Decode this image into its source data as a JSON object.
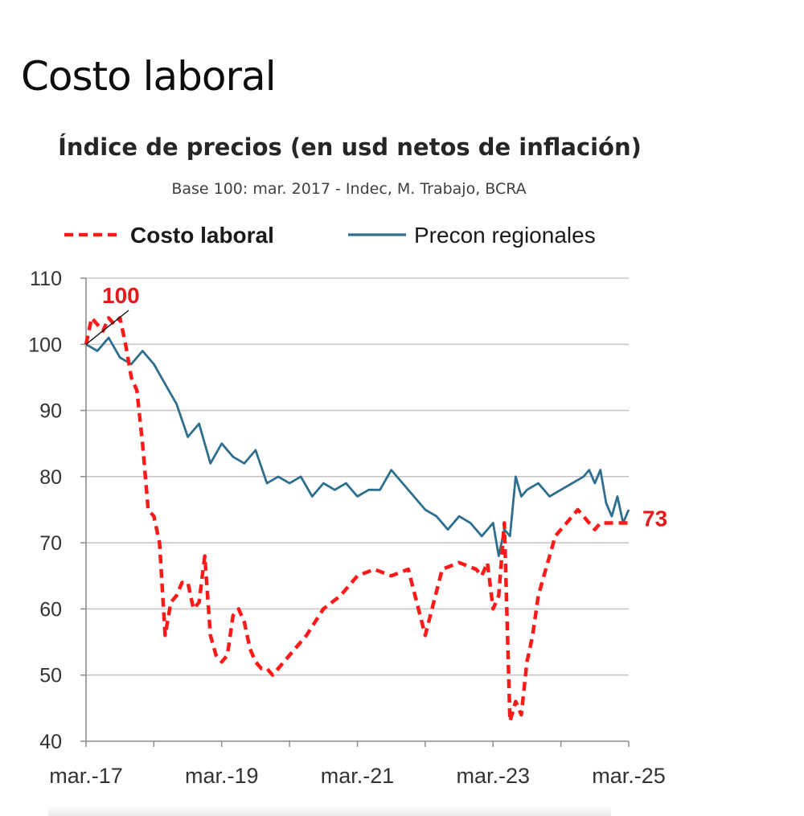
{
  "page": {
    "title": "Costo laboral"
  },
  "chart_data": {
    "type": "line",
    "title": "Índice de precios (en usd netos de inflación)",
    "subtitle": "Base 100: mar. 2017 - Indec, M. Trabajo, BCRA",
    "xlabel": "",
    "ylabel": "",
    "x_ticks": [
      "mar.-17",
      "mar.-19",
      "mar.-21",
      "mar.-23",
      "mar.-25"
    ],
    "ylim": [
      40,
      110
    ],
    "y_ticks": [
      40,
      50,
      60,
      70,
      80,
      90,
      100,
      110
    ],
    "grid": "horizontal",
    "legend_position": "top",
    "annotations": [
      {
        "text": "100",
        "color": "#e31a1c",
        "series": "Costo laboral",
        "point": "start"
      },
      {
        "text": "73",
        "color": "#e31a1c",
        "series": "Costo laboral",
        "point": "end"
      }
    ],
    "series": [
      {
        "name": "Costo laboral",
        "color": "#ff1a1a",
        "style": "dashed",
        "x": [
          "2017-03",
          "2017-04",
          "2017-05",
          "2017-06",
          "2017-07",
          "2017-08",
          "2017-09",
          "2017-10",
          "2017-11",
          "2017-12",
          "2018-01",
          "2018-02",
          "2018-03",
          "2018-04",
          "2018-05",
          "2018-06",
          "2018-07",
          "2018-08",
          "2018-09",
          "2018-10",
          "2018-11",
          "2018-12",
          "2019-01",
          "2019-02",
          "2019-03",
          "2019-04",
          "2019-05",
          "2019-06",
          "2019-07",
          "2019-08",
          "2019-09",
          "2019-10",
          "2019-11",
          "2019-12",
          "2020-01",
          "2020-02",
          "2020-03",
          "2020-06",
          "2020-09",
          "2020-12",
          "2021-03",
          "2021-06",
          "2021-09",
          "2021-12",
          "2022-03",
          "2022-06",
          "2022-09",
          "2022-12",
          "2023-01",
          "2023-02",
          "2023-03",
          "2023-04",
          "2023-05",
          "2023-06",
          "2023-07",
          "2023-08",
          "2023-09",
          "2023-10",
          "2023-11",
          "2023-12",
          "2024-01",
          "2024-02",
          "2024-03",
          "2024-04",
          "2024-05",
          "2024-06",
          "2024-07",
          "2024-08",
          "2024-09",
          "2024-10",
          "2024-11",
          "2024-12",
          "2025-01",
          "2025-02",
          "2025-03"
        ],
        "values": [
          100,
          104,
          103,
          102,
          104,
          103,
          104,
          100,
          95,
          93,
          85,
          75,
          74,
          70,
          56,
          61,
          62,
          64,
          64,
          60,
          61,
          68,
          56,
          53,
          52,
          53,
          59,
          60,
          58,
          54,
          52,
          51,
          51,
          50,
          51,
          52,
          53,
          56,
          60,
          62,
          65,
          66,
          65,
          66,
          56,
          66,
          67,
          66,
          65,
          67,
          60,
          62,
          73,
          43,
          46,
          44,
          52,
          56,
          62,
          65,
          68,
          71,
          72,
          73,
          74,
          75,
          74,
          73,
          72,
          73,
          73,
          73,
          73,
          73,
          73
        ]
      },
      {
        "name": "Precon regionales",
        "color": "#2e6e8e",
        "style": "solid",
        "x": [
          "2017-03",
          "2017-05",
          "2017-07",
          "2017-09",
          "2017-11",
          "2018-01",
          "2018-03",
          "2018-05",
          "2018-07",
          "2018-09",
          "2018-11",
          "2019-01",
          "2019-03",
          "2019-05",
          "2019-07",
          "2019-09",
          "2019-11",
          "2020-01",
          "2020-03",
          "2020-05",
          "2020-07",
          "2020-09",
          "2020-11",
          "2021-01",
          "2021-03",
          "2021-05",
          "2021-07",
          "2021-09",
          "2021-11",
          "2022-01",
          "2022-03",
          "2022-05",
          "2022-07",
          "2022-09",
          "2022-11",
          "2023-01",
          "2023-03",
          "2023-04",
          "2023-05",
          "2023-06",
          "2023-07",
          "2023-08",
          "2023-09",
          "2023-11",
          "2024-01",
          "2024-03",
          "2024-05",
          "2024-07",
          "2024-08",
          "2024-09",
          "2024-10",
          "2024-11",
          "2024-12",
          "2025-01",
          "2025-02",
          "2025-03"
        ],
        "values": [
          100,
          99,
          101,
          98,
          97,
          99,
          97,
          94,
          91,
          86,
          88,
          82,
          85,
          83,
          82,
          84,
          79,
          80,
          79,
          80,
          77,
          79,
          78,
          79,
          77,
          78,
          78,
          81,
          79,
          77,
          75,
          74,
          72,
          74,
          73,
          71,
          73,
          68,
          72,
          71,
          80,
          77,
          78,
          79,
          77,
          78,
          79,
          80,
          81,
          79,
          81,
          76,
          74,
          77,
          73,
          75
        ]
      }
    ]
  }
}
